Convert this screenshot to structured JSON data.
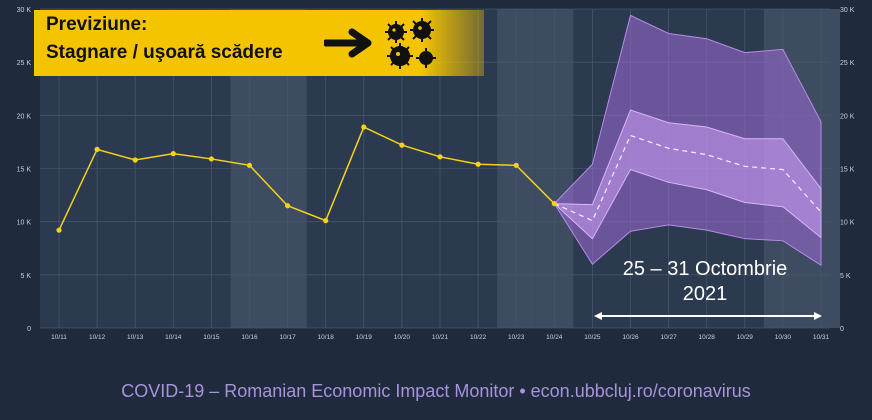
{
  "banner": {
    "title": "Previziune:",
    "subtitle": "Stagnare / uşoară scădere",
    "arrow_icon": "right-arrow-icon",
    "virus_icon": "virus-icon"
  },
  "period_label": {
    "line1": "25 – 31 Octombrie",
    "line2": "2021"
  },
  "footer": "COVID-19 – Romanian Economic Impact Monitor • econ.ubbcluj.ro/coronavirus",
  "colors": {
    "background": "#1f2b3d",
    "plot_background": "#2b3a4e",
    "actual_line": "#f5d21a",
    "forecast_band": "#b17be6",
    "banner": "#f5c400",
    "footer_text": "#a793dc"
  },
  "chart_data": {
    "type": "line",
    "categories": [
      "10/11",
      "10/12",
      "10/13",
      "10/14",
      "10/15",
      "10/16",
      "10/17",
      "10/18",
      "10/19",
      "10/20",
      "10/21",
      "10/22",
      "10/23",
      "10/24",
      "10/25",
      "10/26",
      "10/27",
      "10/28",
      "10/29",
      "10/30",
      "10/31"
    ],
    "y_ticks": [
      "0",
      "5 K",
      "10 K",
      "15 K",
      "20 K",
      "25 K",
      "30 K"
    ],
    "ylim": [
      0,
      30000
    ],
    "grid": true,
    "highlighted_categories": [
      "10/16",
      "10/17",
      "10/23",
      "10/24",
      "10/30",
      "10/31"
    ],
    "actual": {
      "categories": [
        "10/11",
        "10/12",
        "10/13",
        "10/14",
        "10/15",
        "10/16",
        "10/17",
        "10/18",
        "10/19",
        "10/20",
        "10/21",
        "10/22",
        "10/23",
        "10/24"
      ],
      "values": [
        9200,
        16800,
        15800,
        16400,
        15900,
        15300,
        11500,
        10100,
        18900,
        17200,
        16100,
        15400,
        15300,
        11700
      ]
    },
    "forecast": {
      "categories": [
        "10/24",
        "10/25",
        "10/26",
        "10/27",
        "10/28",
        "10/29",
        "10/30",
        "10/31"
      ],
      "median": [
        11700,
        10100,
        18100,
        16900,
        16300,
        15200,
        14900,
        10900
      ],
      "inner_upper": [
        11700,
        11600,
        20500,
        19300,
        18900,
        17800,
        17800,
        13100
      ],
      "inner_lower": [
        11700,
        8400,
        14900,
        13700,
        13000,
        11800,
        11400,
        8500
      ],
      "outer_upper": [
        11700,
        15400,
        29400,
        27700,
        27200,
        25900,
        26200,
        19400
      ],
      "outer_lower": [
        11700,
        6000,
        9100,
        9700,
        9200,
        8400,
        8200,
        5900
      ]
    }
  }
}
